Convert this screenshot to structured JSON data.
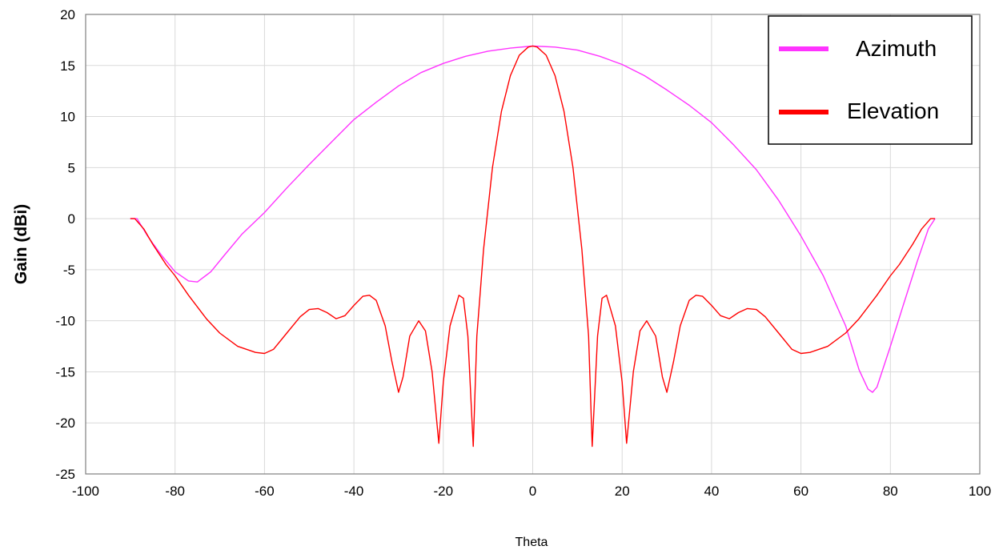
{
  "chart_data": {
    "type": "line",
    "title": "",
    "xlabel": "Theta",
    "ylabel": "Gain (dBi)",
    "xlim": [
      -100,
      100
    ],
    "ylim": [
      -25,
      20
    ],
    "xticks": [
      -100,
      -80,
      -60,
      -40,
      -20,
      0,
      20,
      40,
      60,
      80,
      100
    ],
    "yticks": [
      -25,
      -20,
      -15,
      -10,
      -5,
      0,
      5,
      10,
      15,
      20
    ],
    "grid": true,
    "legend_position": "top-right",
    "series": [
      {
        "name": "Azimuth",
        "color": "#ff33ff",
        "points": [
          [
            -90,
            0
          ],
          [
            -88.5,
            0
          ],
          [
            -86,
            -1.8
          ],
          [
            -83,
            -3.6
          ],
          [
            -80,
            -5.2
          ],
          [
            -77,
            -6.1
          ],
          [
            -75,
            -6.2
          ],
          [
            -72,
            -5.2
          ],
          [
            -69,
            -3.6
          ],
          [
            -65,
            -1.5
          ],
          [
            -60,
            0.6
          ],
          [
            -55,
            3.0
          ],
          [
            -50,
            5.3
          ],
          [
            -45,
            7.5
          ],
          [
            -40,
            9.7
          ],
          [
            -35,
            11.4
          ],
          [
            -30,
            13.0
          ],
          [
            -25,
            14.3
          ],
          [
            -20,
            15.2
          ],
          [
            -15,
            15.9
          ],
          [
            -10,
            16.4
          ],
          [
            -5,
            16.7
          ],
          [
            0,
            16.9
          ],
          [
            5,
            16.8
          ],
          [
            10,
            16.5
          ],
          [
            15,
            15.9
          ],
          [
            20,
            15.1
          ],
          [
            25,
            14.0
          ],
          [
            30,
            12.6
          ],
          [
            35,
            11.1
          ],
          [
            40,
            9.4
          ],
          [
            45,
            7.2
          ],
          [
            50,
            4.8
          ],
          [
            55,
            1.8
          ],
          [
            60,
            -1.7
          ],
          [
            65,
            -5.6
          ],
          [
            70,
            -10.5
          ],
          [
            73,
            -14.8
          ],
          [
            75,
            -16.7
          ],
          [
            76,
            -17.0
          ],
          [
            77,
            -16.5
          ],
          [
            80,
            -12.5
          ],
          [
            83,
            -8.3
          ],
          [
            86,
            -4.2
          ],
          [
            88.5,
            -1.0
          ],
          [
            90,
            0
          ]
        ]
      },
      {
        "name": "Elevation",
        "color": "#ff0000",
        "points": [
          [
            -90,
            0
          ],
          [
            -89,
            0
          ],
          [
            -87,
            -1.0
          ],
          [
            -85,
            -2.5
          ],
          [
            -82,
            -4.5
          ],
          [
            -80,
            -5.6
          ],
          [
            -77,
            -7.5
          ],
          [
            -73,
            -9.8
          ],
          [
            -70,
            -11.2
          ],
          [
            -66,
            -12.5
          ],
          [
            -62,
            -13.1
          ],
          [
            -60,
            -13.2
          ],
          [
            -58,
            -12.8
          ],
          [
            -55,
            -11.2
          ],
          [
            -52,
            -9.6
          ],
          [
            -50,
            -8.9
          ],
          [
            -48,
            -8.8
          ],
          [
            -46,
            -9.2
          ],
          [
            -44,
            -9.8
          ],
          [
            -42,
            -9.5
          ],
          [
            -40,
            -8.5
          ],
          [
            -38,
            -7.6
          ],
          [
            -36.5,
            -7.5
          ],
          [
            -35,
            -8.0
          ],
          [
            -33,
            -10.5
          ],
          [
            -31.5,
            -14.0
          ],
          [
            -30,
            -17.0
          ],
          [
            -29,
            -15.5
          ],
          [
            -27.5,
            -11.5
          ],
          [
            -25.5,
            -10.0
          ],
          [
            -24,
            -11.0
          ],
          [
            -22.5,
            -15.0
          ],
          [
            -21,
            -22.0
          ],
          [
            -20,
            -16.0
          ],
          [
            -18.5,
            -10.5
          ],
          [
            -16.5,
            -7.5
          ],
          [
            -15.5,
            -7.8
          ],
          [
            -14.5,
            -11.5
          ],
          [
            -13.3,
            -22.3
          ],
          [
            -12.5,
            -11.5
          ],
          [
            -11,
            -3.0
          ],
          [
            -9,
            5.0
          ],
          [
            -7,
            10.5
          ],
          [
            -5,
            14.0
          ],
          [
            -3,
            16.0
          ],
          [
            -1,
            16.8
          ],
          [
            0,
            16.9
          ],
          [
            1,
            16.8
          ],
          [
            3,
            16.0
          ],
          [
            5,
            14.0
          ],
          [
            7,
            10.5
          ],
          [
            9,
            5.0
          ],
          [
            11,
            -3.0
          ],
          [
            12.5,
            -11.5
          ],
          [
            13.3,
            -22.3
          ],
          [
            14.5,
            -11.5
          ],
          [
            15.5,
            -7.8
          ],
          [
            16.5,
            -7.5
          ],
          [
            18.5,
            -10.5
          ],
          [
            20,
            -16.0
          ],
          [
            21,
            -22.0
          ],
          [
            22.5,
            -15.0
          ],
          [
            24,
            -11.0
          ],
          [
            25.5,
            -10.0
          ],
          [
            27.5,
            -11.5
          ],
          [
            29,
            -15.5
          ],
          [
            30,
            -17.0
          ],
          [
            31.5,
            -14.0
          ],
          [
            33,
            -10.5
          ],
          [
            35,
            -8.0
          ],
          [
            36.5,
            -7.5
          ],
          [
            38,
            -7.6
          ],
          [
            40,
            -8.5
          ],
          [
            42,
            -9.5
          ],
          [
            44,
            -9.8
          ],
          [
            46,
            -9.2
          ],
          [
            48,
            -8.8
          ],
          [
            50,
            -8.9
          ],
          [
            52,
            -9.6
          ],
          [
            55,
            -11.2
          ],
          [
            58,
            -12.8
          ],
          [
            60,
            -13.2
          ],
          [
            62,
            -13.1
          ],
          [
            66,
            -12.5
          ],
          [
            70,
            -11.2
          ],
          [
            73,
            -9.8
          ],
          [
            77,
            -7.5
          ],
          [
            80,
            -5.6
          ],
          [
            82,
            -4.5
          ],
          [
            85,
            -2.5
          ],
          [
            87,
            -1.0
          ],
          [
            89,
            0
          ],
          [
            90,
            0
          ]
        ]
      }
    ]
  }
}
